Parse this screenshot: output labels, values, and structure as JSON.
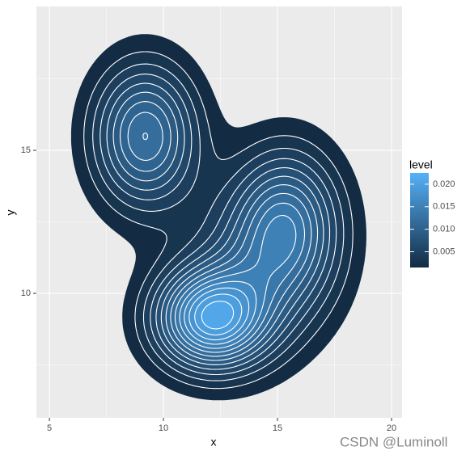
{
  "chart_data": {
    "type": "density2d",
    "x_label": "x",
    "y_label": "y",
    "xlim": [
      4.43,
      20.46
    ],
    "xticks": [
      5,
      10,
      15,
      20
    ],
    "xminor": [
      7.5,
      12.5,
      17.5
    ],
    "ylim": [
      5.65,
      20.03
    ],
    "yticks": [
      10,
      15
    ],
    "yminor": [
      7.5,
      12.5,
      17.5
    ],
    "peaks": [
      {
        "x": 9.2,
        "y": 15.5,
        "sx": 1.55,
        "sy": 1.7,
        "height": 0.0135
      },
      {
        "x": 12.1,
        "y": 9.1,
        "sx": 1.7,
        "sy": 1.2,
        "height": 0.019
      },
      {
        "x": 15.4,
        "y": 12.4,
        "sx": 1.6,
        "sy": 1.8,
        "height": 0.012
      },
      {
        "x": 14.0,
        "y": 10.8,
        "sx": 2.2,
        "sy": 2.0,
        "height": 0.006
      }
    ],
    "levels": [
      0.0015,
      0.003,
      0.0045,
      0.006,
      0.0075,
      0.009,
      0.0105,
      0.012,
      0.0135,
      0.015,
      0.0165,
      0.018,
      0.0195,
      0.021,
      0.0225
    ],
    "legend_title": "level",
    "fill_lim": [
      0.0015,
      0.0225
    ],
    "fill_ticks": [
      0.005,
      {
        "value": 0.01,
        "label": "0.010"
      },
      0.015,
      {
        "value": 0.02,
        "label": "0.020"
      }
    ],
    "low_color": "#132B43",
    "high_color": "#56B1F7",
    "line_color": "#ffffff",
    "grid": true
  },
  "watermark": "CSDN @Luminoll"
}
